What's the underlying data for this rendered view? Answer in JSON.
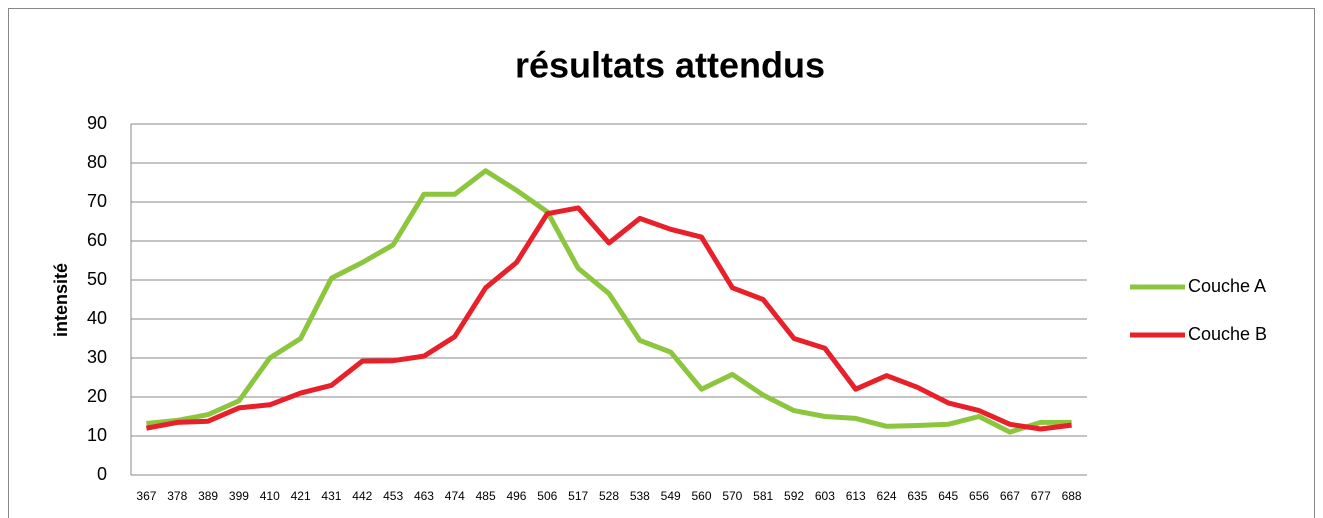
{
  "chart_data": {
    "type": "line",
    "title": "résultats attendus",
    "y_label": "intensité",
    "categories": [
      "367",
      "378",
      "389",
      "399",
      "410",
      "421",
      "431",
      "442",
      "453",
      "463",
      "474",
      "485",
      "496",
      "506",
      "517",
      "528",
      "538",
      "549",
      "560",
      "570",
      "581",
      "592",
      "603",
      "613",
      "624",
      "635",
      "645",
      "656",
      "667",
      "677",
      "688"
    ],
    "series": [
      {
        "name": "Couche A",
        "color": "#8cc63f",
        "values": [
          13.2,
          14,
          15.5,
          19,
          30,
          35,
          50.5,
          54.5,
          59,
          72,
          72,
          78,
          73,
          67.5,
          53,
          46.5,
          34.5,
          31.5,
          22,
          25.8,
          20.5,
          16.5,
          15,
          14.5,
          12.5,
          12.7,
          13,
          15,
          11,
          13.5,
          13.5
        ]
      },
      {
        "name": "Couche B",
        "color": "#e8202a",
        "values": [
          12,
          13.5,
          13.8,
          17.2,
          18,
          21,
          23,
          29.2,
          29.3,
          30.5,
          35.5,
          48,
          54.5,
          67,
          68.5,
          59.5,
          65.8,
          63,
          61,
          48,
          45,
          35,
          32.5,
          22,
          25.5,
          22.5,
          18.5,
          16.5,
          13,
          11.8,
          12.8
        ]
      }
    ],
    "ylim": [
      0,
      90
    ],
    "yticks": [
      0,
      10,
      20,
      30,
      40,
      50,
      60,
      70,
      80,
      90
    ],
    "grid": true,
    "legend": "right"
  }
}
